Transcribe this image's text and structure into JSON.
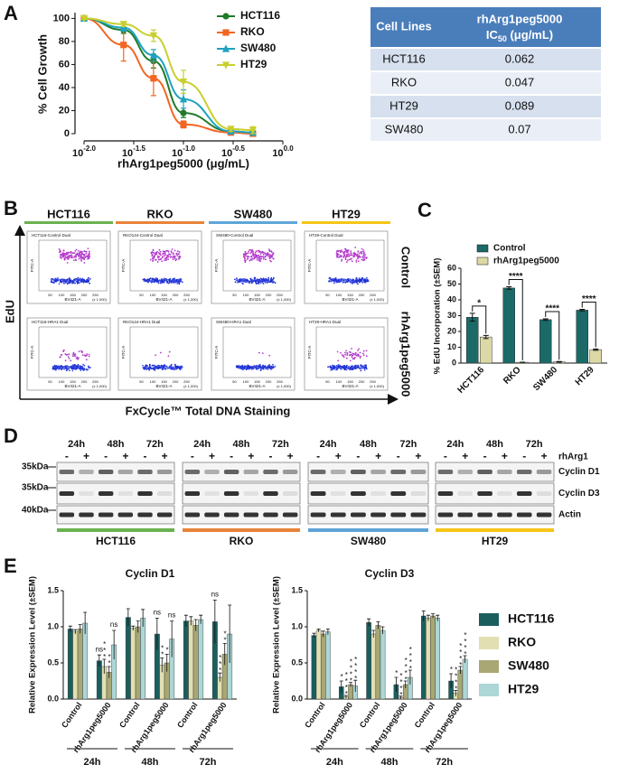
{
  "panel_labels": [
    "A",
    "B",
    "C",
    "D",
    "E"
  ],
  "chart_data": [
    {
      "type": "line",
      "xlabel": "rhArg1peg5000 (μg/mL)",
      "ylabel": "% Cell Growth",
      "xscale": "log",
      "x": [
        0.01,
        0.025,
        0.05,
        0.1,
        0.3,
        0.5
      ],
      "xlim": [
        0.01,
        1
      ],
      "xticks": [
        {
          "value": 0.01,
          "label": "10-2.0"
        },
        {
          "value": 0.0316,
          "label": "10-1.5"
        },
        {
          "value": 0.1,
          "label": "10-1.0"
        },
        {
          "value": 0.3162,
          "label": "10-0.5"
        },
        {
          "value": 1,
          "label": "100.0"
        }
      ],
      "ylim": [
        0,
        105
      ],
      "yticks": [
        0,
        20,
        40,
        60,
        80,
        100
      ],
      "legend": "top-right",
      "series": [
        {
          "name": "HCT116",
          "color": "#1f7a2a",
          "marker": "circle",
          "values": [
            100,
            90,
            63,
            18,
            2,
            1
          ],
          "errors": [
            1,
            3,
            6,
            4,
            1,
            1
          ]
        },
        {
          "name": "RKO",
          "color": "#f26522",
          "marker": "square",
          "values": [
            100,
            77,
            48,
            8,
            1,
            0
          ],
          "errors": [
            1,
            14,
            15,
            3,
            1,
            1
          ]
        },
        {
          "name": "SW480",
          "color": "#1fa2bf",
          "marker": "triangle",
          "values": [
            100,
            92,
            68,
            30,
            2,
            1
          ],
          "errors": [
            1,
            3,
            5,
            8,
            1,
            1
          ]
        },
        {
          "name": "HT29",
          "color": "#c9cf2e",
          "marker": "triangle-down",
          "values": [
            100,
            95,
            85,
            45,
            4,
            3
          ],
          "errors": [
            1,
            2,
            5,
            10,
            2,
            3
          ]
        }
      ]
    },
    {
      "type": "bar",
      "ylabel": "% EdU Incorporation (±SEM)",
      "categories": [
        "HCT116",
        "RKO",
        "SW480",
        "HT29"
      ],
      "ylim": [
        0,
        60
      ],
      "yticks": [
        0,
        10,
        20,
        30,
        40,
        50,
        60
      ],
      "legend": "top",
      "series": [
        {
          "name": "Control",
          "color": "#1b6a68",
          "values": [
            29,
            47.5,
            27.5,
            33.5
          ],
          "errors": [
            2.5,
            0.8,
            0.5,
            0.5
          ]
        },
        {
          "name": "rhArg1peg5000",
          "color": "#ddd9a6",
          "values": [
            16.5,
            0.5,
            0.8,
            8.5
          ],
          "errors": [
            1,
            0.1,
            0.2,
            0.4
          ]
        }
      ],
      "significance": [
        "*",
        "****",
        "****",
        "****"
      ]
    },
    {
      "type": "grouped-bar",
      "ylabel": "Relative Expression Level (±SEM)",
      "categories": [
        "Control",
        "rhArg1peg5000",
        "Control",
        "rhArg1peg5000",
        "Control",
        "rhArg1peg5000"
      ],
      "groups": [
        "24h",
        "48h",
        "72h"
      ],
      "ylim": [
        0,
        1.5
      ],
      "yticks": [
        {
          "value": 0,
          "label": "0.0"
        },
        0.5,
        {
          "value": 1,
          "label": "1.0"
        },
        1.5
      ],
      "series": [
        {
          "name": "HCT116",
          "color": "#1b5e5e"
        },
        {
          "name": "RKO",
          "color": "#e2dfb2"
        },
        {
          "name": "SW480",
          "color": "#a9a774"
        },
        {
          "name": "HT29",
          "color": "#acd7d6"
        }
      ],
      "panels": [
        {
          "title": "Cyclin D1",
          "series": [
            {
              "values": [
                0.97,
                0.53,
                1.13,
                0.9,
                1.08,
                1.07
              ],
              "errors": [
                0.04,
                0.08,
                0.12,
                0.22,
                0.08,
                0.3
              ],
              "significance": [
                null,
                "ns",
                null,
                "ns",
                null,
                "ns"
              ]
            },
            {
              "values": [
                0.93,
                0.45,
                0.98,
                0.47,
                1.08,
                0.3
              ],
              "errors": [
                0.03,
                0.1,
                0.03,
                0.1,
                0.06,
                0.06
              ],
              "significance": [
                null,
                "***",
                null,
                "**",
                null,
                "***"
              ]
            },
            {
              "values": [
                0.97,
                0.37,
                1.0,
                0.5,
                1.02,
                0.62
              ],
              "errors": [
                0.06,
                0.08,
                0.08,
                0.12,
                0.08,
                0.15
              ],
              "significance": [
                null,
                "**",
                null,
                "*",
                null,
                "**"
              ]
            },
            {
              "values": [
                1.05,
                0.75,
                1.12,
                0.83,
                1.1,
                0.9
              ],
              "errors": [
                0.15,
                0.2,
                0.12,
                0.25,
                0.06,
                0.4
              ],
              "significance": [
                null,
                "ns",
                null,
                "ns",
                null,
                null
              ]
            }
          ]
        },
        {
          "title": "Cyclin D3",
          "series": [
            {
              "values": [
                0.88,
                0.17,
                1.06,
                0.2,
                1.15,
                0.25
              ],
              "errors": [
                0.03,
                0.08,
                0.05,
                0.1,
                0.07,
                0.1
              ],
              "significance": [
                null,
                "*",
                null,
                "*",
                null,
                "*"
              ]
            },
            {
              "values": [
                0.95,
                0.03,
                0.9,
                0.02,
                1.12,
                0.08
              ],
              "errors": [
                0.02,
                0.02,
                0.05,
                0.02,
                0.04,
                0.04
              ],
              "significance": [
                null,
                "****",
                null,
                "****",
                null,
                "****"
              ]
            },
            {
              "values": [
                0.9,
                0.2,
                1.02,
                0.2,
                1.15,
                0.4
              ],
              "errors": [
                0.04,
                0.03,
                0.05,
                0.05,
                0.03,
                0.05
              ],
              "significance": [
                null,
                "****",
                null,
                "****",
                null,
                "****"
              ]
            },
            {
              "values": [
                0.93,
                0.18,
                0.95,
                0.3,
                1.12,
                0.55
              ],
              "errors": [
                0.04,
                0.08,
                0.05,
                0.1,
                0.04,
                0.05
              ],
              "significance": [
                null,
                "****",
                null,
                "****",
                null,
                "****"
              ]
            }
          ]
        }
      ]
    }
  ],
  "table": {
    "header": [
      "Cell Lines",
      {
        "line1": "rhArg1peg5000",
        "line2": [
          "IC",
          "50",
          " (μg/mL)"
        ]
      }
    ],
    "rows": [
      [
        "HCT116",
        0.062
      ],
      [
        "RKO",
        0.047
      ],
      [
        "HT29",
        0.089
      ],
      [
        "SW480",
        0.07
      ]
    ]
  },
  "flow": {
    "ylabel": "EdU",
    "xlabel": "FxCycle™ Total DNA Staining",
    "columns": [
      {
        "name": "HCT116",
        "color": "#6ab24e"
      },
      {
        "name": "RKO",
        "color": "#e8833a"
      },
      {
        "name": "SW480",
        "color": "#5ea5d8"
      },
      {
        "name": "HT29",
        "color": "#f5c518"
      }
    ],
    "rows": [
      "Control",
      "rhArg1peg5000"
    ],
    "plot_titles": [
      [
        "HCT116-Control Dual",
        "RKO144-Control Dual",
        "SW480-Control Dual",
        "HT29-Control Dual"
      ],
      [
        "HCT116-HRA1 Dual",
        "RKO144-HRA1 Dual",
        "SW480-HRA1 Dual",
        "HT29-HRA1 Dual"
      ]
    ],
    "x_axis": "BV421-A",
    "y_axis": "FITC-A",
    "x_ticks": [
      "50",
      "100",
      "150",
      "200",
      "250"
    ],
    "x_unit": "(x 1,000)"
  },
  "blot": {
    "groups": [
      {
        "name": "HCT116",
        "color": "#6ab24e"
      },
      {
        "name": "RKO",
        "color": "#e8833a"
      },
      {
        "name": "SW480",
        "color": "#5ea5d8"
      },
      {
        "name": "HT29",
        "color": "#f5c518"
      }
    ],
    "times": [
      "24h",
      "48h",
      "72h"
    ],
    "treatments": [
      "-",
      "+"
    ],
    "treatment_label": "rhArg1",
    "rows": [
      {
        "name": "Cyclin D1",
        "mw": "35kDa"
      },
      {
        "name": "Cyclin D3",
        "mw": "35kDa"
      },
      {
        "name": "Actin",
        "mw": "40kDa"
      }
    ]
  }
}
